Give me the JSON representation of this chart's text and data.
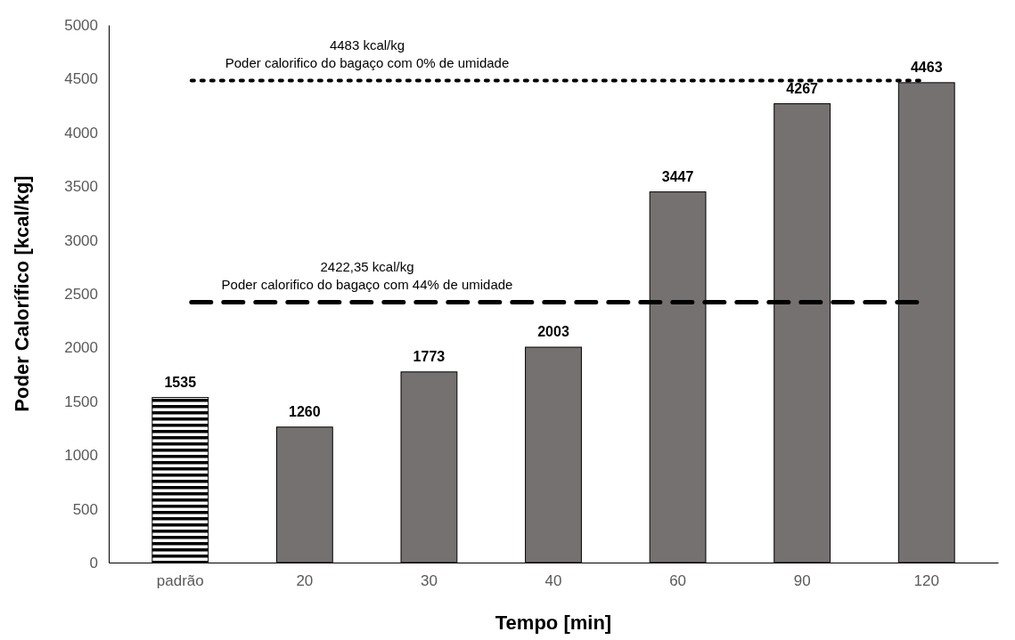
{
  "chart_data": {
    "type": "bar",
    "xlabel": "Tempo [min]",
    "ylabel": "Poder Calorífico [kcal/kg]",
    "categories": [
      "padrão",
      "20",
      "30",
      "40",
      "60",
      "90",
      "120"
    ],
    "values": [
      1535,
      1260,
      1773,
      2003,
      3447,
      4267,
      4463
    ],
    "colors": [
      "#000000",
      "#767171",
      "#767171",
      "#767171",
      "#767171",
      "#767171",
      "#767171"
    ],
    "ylim": [
      0,
      5000
    ],
    "yticks": [
      0,
      500,
      1000,
      1500,
      2000,
      2500,
      3000,
      3500,
      4000,
      4500,
      5000
    ],
    "data_labels": true,
    "grid": false,
    "ref_lines": [
      {
        "axis": "y",
        "value": 4483,
        "label": "4483 kcal/kg\nPoder calorifico do bagaço com 0% de umidade",
        "line_style": "dotted",
        "color": "#000000"
      },
      {
        "axis": "y",
        "value": 2422.35,
        "label": "2422,35 kcal/kg\nPoder calorifico do bagaço com 44% de umidade",
        "line_style": "dashed",
        "color": "#000000"
      }
    ]
  }
}
